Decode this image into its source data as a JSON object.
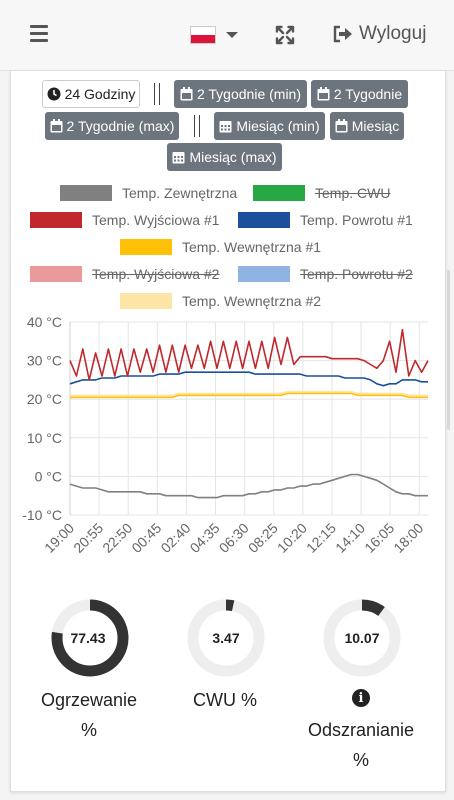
{
  "header": {
    "logout_label": "Wyloguj",
    "language_flag_colors": [
      "#ffffff",
      "#dc143c"
    ]
  },
  "range_buttons": [
    {
      "label": "24 Godziny",
      "icon": "clock-icon",
      "active": true
    },
    {
      "label": "2 Tygodnie (min)",
      "icon": "calendar-icon",
      "active": false
    },
    {
      "label": "2 Tygodnie",
      "icon": "calendar-icon",
      "active": false
    },
    {
      "label": "2 Tygodnie (max)",
      "icon": "calendar-icon",
      "active": false
    },
    {
      "label": "Miesiąc (min)",
      "icon": "calendar-days-icon",
      "active": false
    },
    {
      "label": "Miesiąc",
      "icon": "calendar-icon",
      "active": false
    },
    {
      "label": "Miesiąc (max)",
      "icon": "calendar-days-icon",
      "active": false
    }
  ],
  "legend": [
    {
      "label": "Temp. Zewnętrzna",
      "color": "#808080",
      "hidden": false
    },
    {
      "label": "Temp. CWU",
      "color": "#28a745",
      "hidden": true
    },
    {
      "label": "Temp. Wyjściowa #1",
      "color": "#c0282d",
      "hidden": false
    },
    {
      "label": "Temp. Powrotu #1",
      "color": "#1c4f9c",
      "hidden": false
    },
    {
      "label": "Temp. Wewnętrzna #1",
      "color": "#ffc107",
      "hidden": false
    },
    {
      "label": "Temp. Wyjściowa #2",
      "color": "#e89a9a",
      "hidden": true
    },
    {
      "label": "Temp. Powrotu #2",
      "color": "#8fb4e3",
      "hidden": true
    },
    {
      "label": "Temp. Wewnętrzna #2",
      "color": "#ffe4a8",
      "hidden": false
    }
  ],
  "chart_data": {
    "type": "line",
    "ylim": [
      -10,
      40
    ],
    "y_ticks": [
      "40 °C",
      "30 °C",
      "20 °C",
      "10 °C",
      "0 °C",
      "-10 °C"
    ],
    "y_tick_values": [
      40,
      30,
      20,
      10,
      0,
      -10
    ],
    "x_ticks": [
      "19:00",
      "20:55",
      "22:50",
      "00:45",
      "02:40",
      "04:35",
      "06:30",
      "08:25",
      "10:20",
      "12:15",
      "14:10",
      "16:05",
      "18:00"
    ],
    "series": [
      {
        "name": "Temp. Zewnętrzna",
        "color": "#808080",
        "values": [
          -2,
          -2.5,
          -3,
          -3,
          -3,
          -3.5,
          -4,
          -4,
          -4,
          -4,
          -4,
          -4,
          -4.5,
          -4.5,
          -4.5,
          -5,
          -5,
          -5,
          -5,
          -5,
          -5.5,
          -5.5,
          -5.5,
          -5.5,
          -5,
          -5,
          -5,
          -5,
          -4.5,
          -4.5,
          -4,
          -4,
          -3.5,
          -3.5,
          -3,
          -3,
          -2.5,
          -2.5,
          -2,
          -2,
          -1.5,
          -1,
          -0.5,
          0,
          0.5,
          0.5,
          0,
          -0.5,
          -1,
          -2,
          -3,
          -4,
          -4.5,
          -4.5,
          -5,
          -5,
          -5
        ]
      },
      {
        "name": "Temp. Wyjściowa #1",
        "color": "#c0282d",
        "values": [
          30,
          26,
          33,
          25,
          32,
          26,
          33,
          26,
          33,
          26,
          33,
          27,
          33,
          27,
          34,
          27,
          34,
          27,
          34,
          28,
          34,
          28,
          35,
          28,
          35,
          28,
          35,
          28,
          35,
          28,
          35,
          28,
          36,
          29,
          36,
          29,
          31,
          31,
          31,
          31,
          31,
          30.5,
          30.5,
          30.5,
          30.5,
          30.5,
          30,
          29,
          28,
          30,
          35,
          27,
          38,
          26,
          30,
          27,
          30
        ]
      },
      {
        "name": "Temp. Powrotu #1",
        "color": "#1c4f9c",
        "values": [
          24,
          24.5,
          25,
          25,
          25,
          25.5,
          25.5,
          25.5,
          26,
          26,
          26,
          26,
          26,
          26,
          26.5,
          26.5,
          26.5,
          26.5,
          27,
          27,
          27,
          27,
          27,
          27,
          27,
          27,
          27,
          27,
          27,
          26.5,
          26.5,
          26.5,
          26.5,
          26.5,
          26.5,
          26.5,
          26.5,
          26,
          26,
          26,
          26,
          26,
          26,
          25.5,
          25.5,
          25.5,
          25.5,
          25,
          24,
          23.5,
          24,
          24,
          25,
          25,
          25,
          24.5,
          24.5
        ]
      },
      {
        "name": "Temp. Wewnętrzna #1",
        "color": "#ffc107",
        "values": [
          20.5,
          20.5,
          20.5,
          20.5,
          20.5,
          20.5,
          20.5,
          20.5,
          20.5,
          20.5,
          20.5,
          20.5,
          20.5,
          20.5,
          20.5,
          20.5,
          20.5,
          21,
          21,
          21,
          21,
          21,
          21,
          21,
          21,
          21,
          21,
          21,
          21,
          21,
          21,
          21,
          21,
          21,
          21.5,
          21.5,
          21.5,
          21.5,
          21.5,
          21.5,
          21.5,
          21.5,
          21.5,
          21.5,
          21.5,
          21,
          21,
          21,
          21,
          21,
          21,
          21,
          21,
          20.5,
          20.5,
          20.5,
          20.5
        ]
      },
      {
        "name": "Temp. Wewnętrzna #2",
        "color": "#ffe4a8",
        "values": [
          21,
          21,
          21,
          21,
          21,
          21,
          21,
          21,
          21,
          21,
          21,
          21,
          21,
          21,
          21,
          21,
          21,
          21.5,
          21.5,
          21.5,
          21.5,
          21.5,
          21.5,
          21.5,
          21.5,
          21.5,
          21.5,
          21.5,
          21.5,
          21.5,
          21.5,
          21.5,
          21.5,
          21.5,
          22,
          22,
          22,
          22,
          22,
          22,
          22,
          22,
          22,
          22,
          22,
          21.5,
          21.5,
          21.5,
          21.5,
          21.5,
          21.5,
          21.5,
          21.5,
          21,
          21,
          21,
          21
        ]
      }
    ]
  },
  "stats": [
    {
      "value": "77.43",
      "fraction": 0.7743,
      "label_line1": "Ogrzewanie",
      "label_line2": "%"
    },
    {
      "value": "3.47",
      "fraction": 0.0347,
      "label_line1": "CWU %",
      "label_line2": ""
    },
    {
      "value": "10.07",
      "fraction": 0.1007,
      "label_line1": "Odszranianie",
      "label_line2": "%"
    }
  ]
}
